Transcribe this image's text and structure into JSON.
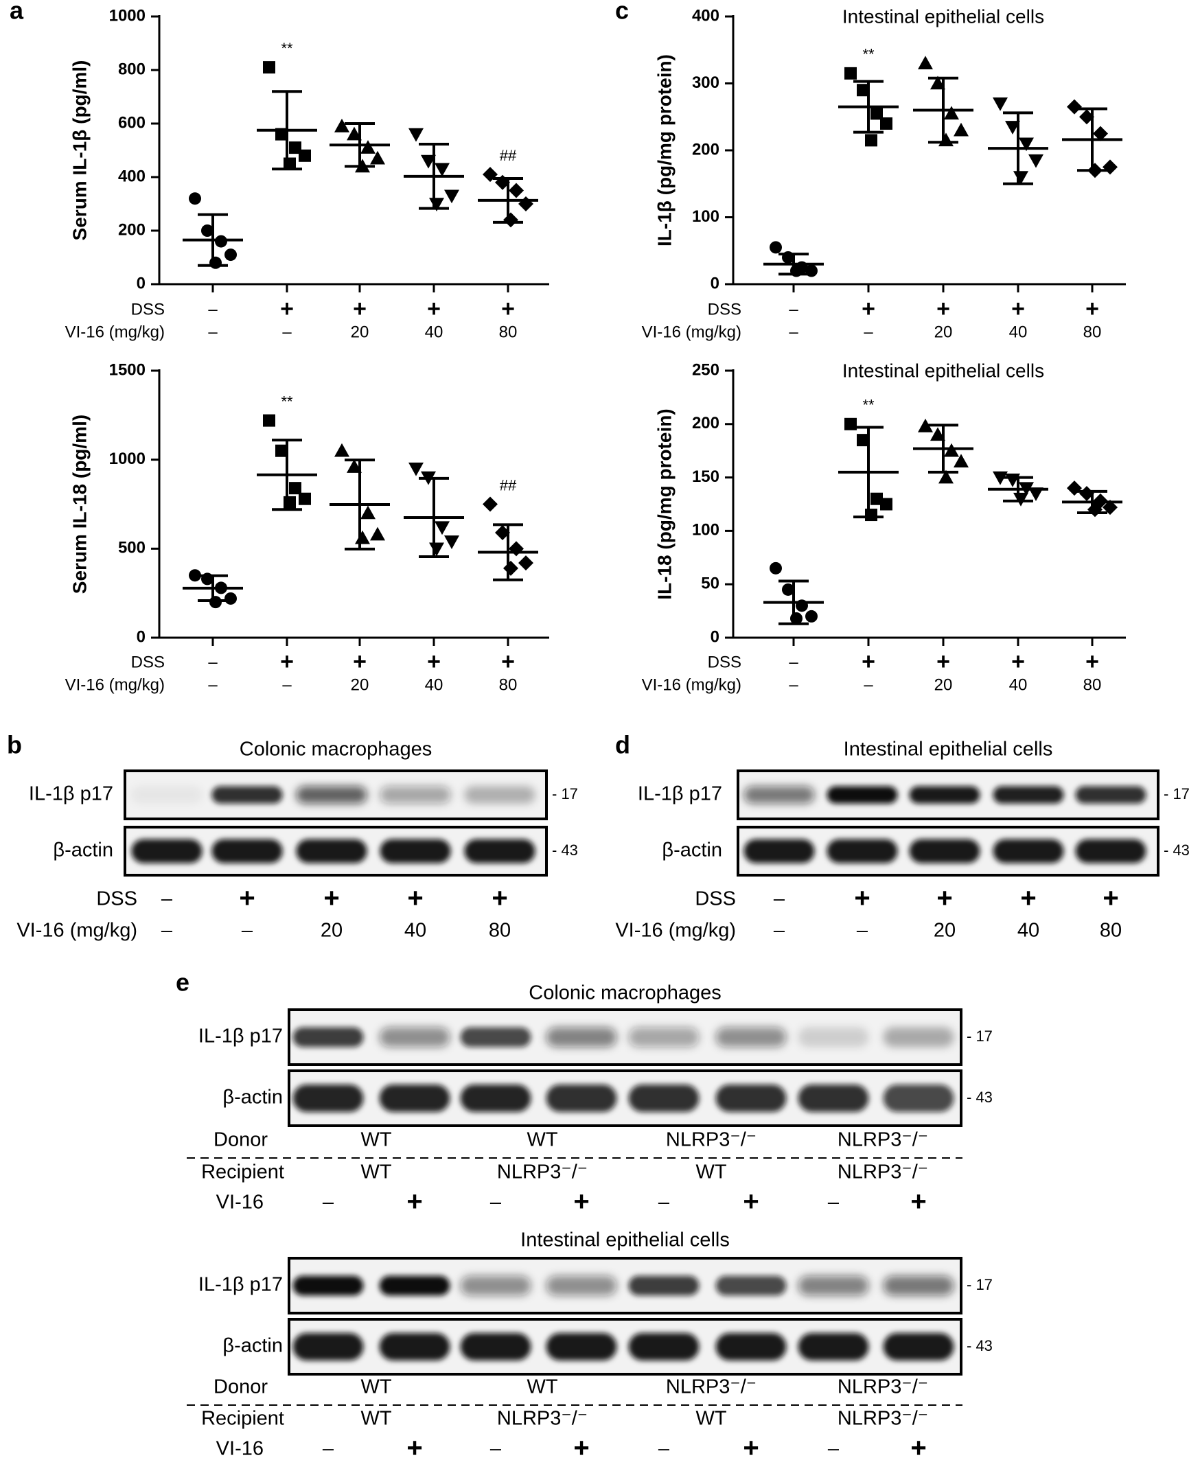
{
  "panels": {
    "a": "a",
    "b": "b",
    "c": "c",
    "d": "d",
    "e": "e"
  },
  "chart_data": [
    {
      "id": "a_top",
      "type": "scatter",
      "title": "",
      "ylabel": "Serum IL-1β (pg/ml)",
      "ylim": [
        0,
        1000
      ],
      "yticks": [
        "0",
        "200",
        "400",
        "600",
        "800",
        "1000"
      ],
      "conditions": [
        {
          "label": "DSS",
          "values": [
            "–",
            "+",
            "+",
            "+",
            "+"
          ]
        },
        {
          "label": "VI-16 (mg/kg)",
          "values": [
            "–",
            "–",
            "20",
            "40",
            "80"
          ]
        }
      ],
      "annotations": [
        "",
        "**",
        "",
        "",
        "##"
      ],
      "markers": [
        "circle",
        "square",
        "triangle-up",
        "triangle-down",
        "diamond"
      ],
      "groups": [
        {
          "mean": 165,
          "sd": 95,
          "points": [
            320,
            200,
            160,
            110,
            80
          ]
        },
        {
          "mean": 575,
          "sd": 145,
          "points": [
            810,
            560,
            510,
            480,
            450
          ]
        },
        {
          "mean": 520,
          "sd": 80,
          "points": [
            590,
            560,
            510,
            470,
            440
          ]
        },
        {
          "mean": 403,
          "sd": 120,
          "points": [
            560,
            460,
            430,
            330,
            300
          ]
        },
        {
          "mean": 313,
          "sd": 82,
          "points": [
            410,
            380,
            350,
            300,
            240
          ]
        }
      ]
    },
    {
      "id": "a_bottom",
      "type": "scatter",
      "title": "",
      "ylabel": "Serum IL-18 (pg/ml)",
      "ylim": [
        0,
        1500
      ],
      "yticks": [
        "0",
        "500",
        "1000",
        "1500"
      ],
      "conditions": [
        {
          "label": "DSS",
          "values": [
            "–",
            "+",
            "+",
            "+",
            "+"
          ]
        },
        {
          "label": "VI-16 (mg/kg)",
          "values": [
            "–",
            "–",
            "20",
            "40",
            "80"
          ]
        }
      ],
      "annotations": [
        "",
        "**",
        "",
        "",
        "##"
      ],
      "markers": [
        "circle",
        "square",
        "triangle-up",
        "triangle-down",
        "diamond"
      ],
      "groups": [
        {
          "mean": 278,
          "sd": 70,
          "points": [
            350,
            330,
            280,
            220,
            200
          ]
        },
        {
          "mean": 915,
          "sd": 195,
          "points": [
            1220,
            1050,
            840,
            780,
            760
          ]
        },
        {
          "mean": 748,
          "sd": 250,
          "points": [
            1050,
            960,
            700,
            580,
            560
          ]
        },
        {
          "mean": 675,
          "sd": 220,
          "points": [
            950,
            900,
            620,
            540,
            500
          ]
        },
        {
          "mean": 480,
          "sd": 155,
          "points": [
            750,
            590,
            500,
            420,
            390
          ]
        }
      ]
    },
    {
      "id": "c_top",
      "type": "scatter",
      "title": "Intestinal epithelial cells",
      "ylabel": "IL-1β (pg/mg protein)",
      "ylim": [
        0,
        400
      ],
      "yticks": [
        "0",
        "100",
        "200",
        "300",
        "400"
      ],
      "conditions": [
        {
          "label": "DSS",
          "values": [
            "–",
            "+",
            "+",
            "+",
            "+"
          ]
        },
        {
          "label": "VI-16 (mg/kg)",
          "values": [
            "–",
            "–",
            "20",
            "40",
            "80"
          ]
        }
      ],
      "annotations": [
        "",
        "**",
        "",
        "",
        ""
      ],
      "markers": [
        "circle",
        "square",
        "triangle-up",
        "triangle-down",
        "diamond"
      ],
      "groups": [
        {
          "mean": 30,
          "sd": 15,
          "points": [
            55,
            40,
            25,
            20,
            20
          ]
        },
        {
          "mean": 265,
          "sd": 38,
          "points": [
            315,
            290,
            255,
            240,
            215
          ]
        },
        {
          "mean": 260,
          "sd": 48,
          "points": [
            330,
            300,
            255,
            230,
            215
          ]
        },
        {
          "mean": 203,
          "sd": 53,
          "points": [
            270,
            235,
            210,
            185,
            160
          ]
        },
        {
          "mean": 216,
          "sd": 46,
          "points": [
            265,
            250,
            225,
            175,
            170
          ]
        }
      ]
    },
    {
      "id": "c_bottom",
      "type": "scatter",
      "title": "Intestinal epithelial cells",
      "ylabel": "IL-18 (pg/mg protein)",
      "ylim": [
        0,
        250
      ],
      "yticks": [
        "0",
        "50",
        "100",
        "150",
        "200",
        "250"
      ],
      "conditions": [
        {
          "label": "DSS",
          "values": [
            "–",
            "+",
            "+",
            "+",
            "+"
          ]
        },
        {
          "label": "VI-16 (mg/kg)",
          "values": [
            "–",
            "–",
            "20",
            "40",
            "80"
          ]
        }
      ],
      "annotations": [
        "",
        "**",
        "",
        "",
        ""
      ],
      "markers": [
        "circle",
        "square",
        "triangle-up",
        "triangle-down",
        "diamond"
      ],
      "groups": [
        {
          "mean": 33,
          "sd": 20,
          "points": [
            65,
            45,
            30,
            20,
            18
          ]
        },
        {
          "mean": 155,
          "sd": 42,
          "points": [
            200,
            185,
            130,
            125,
            115
          ]
        },
        {
          "mean": 177,
          "sd": 22,
          "points": [
            198,
            190,
            175,
            165,
            150
          ]
        },
        {
          "mean": 139,
          "sd": 11,
          "points": [
            150,
            148,
            140,
            135,
            130
          ]
        },
        {
          "mean": 127,
          "sd": 10,
          "points": [
            140,
            135,
            128,
            122,
            120
          ]
        }
      ]
    }
  ],
  "blots": {
    "b": {
      "title": "Colonic macrophages",
      "rows": [
        {
          "label": "IL-1β p17",
          "mw": "- 17",
          "intensity": [
            0.05,
            0.85,
            0.65,
            0.35,
            0.28
          ]
        },
        {
          "label": "β-actin",
          "mw": "- 43",
          "intensity": [
            0.95,
            0.95,
            0.95,
            0.95,
            0.95
          ]
        }
      ],
      "conditions": [
        {
          "label": "DSS",
          "values": [
            "–",
            "+",
            "+",
            "+",
            "+"
          ]
        },
        {
          "label": "VI-16 (mg/kg)",
          "values": [
            "–",
            "–",
            "20",
            "40",
            "80"
          ]
        }
      ]
    },
    "d": {
      "title": "Intestinal epithelial cells",
      "rows": [
        {
          "label": "IL-1β p17",
          "mw": "- 17",
          "intensity": [
            0.55,
            1.0,
            0.95,
            0.92,
            0.85
          ]
        },
        {
          "label": "β-actin",
          "mw": "- 43",
          "intensity": [
            0.95,
            0.95,
            0.95,
            0.95,
            0.95
          ]
        }
      ],
      "conditions": [
        {
          "label": "DSS",
          "values": [
            "–",
            "+",
            "+",
            "+",
            "+"
          ]
        },
        {
          "label": "VI-16 (mg/kg)",
          "values": [
            "–",
            "–",
            "20",
            "40",
            "80"
          ]
        }
      ]
    },
    "e": [
      {
        "title": "Colonic macrophages",
        "rows": [
          {
            "label": "IL-1β p17",
            "mw": "- 17",
            "intensity": [
              0.8,
              0.45,
              0.75,
              0.5,
              0.35,
              0.45,
              0.15,
              0.3
            ]
          },
          {
            "label": "β-actin",
            "mw": "- 43",
            "intensity": [
              0.9,
              0.9,
              0.9,
              0.85,
              0.85,
              0.85,
              0.85,
              0.75
            ]
          }
        ],
        "donor": {
          "label": "Donor",
          "values": [
            "WT",
            "WT",
            "NLRP3⁻/⁻",
            "NLRP3⁻/⁻"
          ]
        },
        "recipient": {
          "label": "Recipient",
          "values": [
            "WT",
            "NLRP3⁻/⁻",
            "WT",
            "NLRP3⁻/⁻"
          ]
        },
        "treatment": {
          "label": "VI-16",
          "values": [
            "–",
            "+",
            "–",
            "+",
            "–",
            "+",
            "–",
            "+"
          ]
        }
      },
      {
        "title": "Intestinal epithelial cells",
        "rows": [
          {
            "label": "IL-1β p17",
            "mw": "- 17",
            "intensity": [
              1.0,
              1.0,
              0.45,
              0.45,
              0.8,
              0.75,
              0.5,
              0.55
            ]
          },
          {
            "label": "β-actin",
            "mw": "- 43",
            "intensity": [
              0.95,
              0.95,
              0.95,
              0.95,
              0.95,
              0.95,
              0.95,
              0.95
            ]
          }
        ],
        "donor": {
          "label": "Donor",
          "values": [
            "WT",
            "WT",
            "NLRP3⁻/⁻",
            "NLRP3⁻/⁻"
          ]
        },
        "recipient": {
          "label": "Recipient",
          "values": [
            "WT",
            "NLRP3⁻/⁻",
            "WT",
            "NLRP3⁻/⁻"
          ]
        },
        "treatment": {
          "label": "VI-16",
          "values": [
            "–",
            "+",
            "–",
            "+",
            "–",
            "+",
            "–",
            "+"
          ]
        }
      }
    ]
  }
}
